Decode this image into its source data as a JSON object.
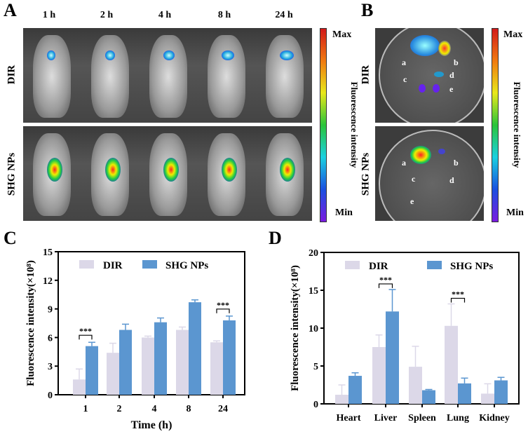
{
  "panel_labels": {
    "a": "A",
    "b": "B",
    "c": "C",
    "d": "D"
  },
  "panel_a": {
    "time_labels": [
      "1 h",
      "2 h",
      "4 h",
      "8 h",
      "24 h"
    ],
    "rows": [
      "DIR",
      "SHG  NPs"
    ],
    "colorbar": {
      "max": "Max",
      "min": "Min",
      "label": "Fluorescence  intensity"
    }
  },
  "panel_b": {
    "rows": [
      "DIR",
      "SHG  NPs"
    ],
    "organ_letters": [
      "a",
      "b",
      "c",
      "d",
      "e"
    ],
    "colorbar": {
      "max": "Max",
      "min": "Min",
      "label": "Fluorescence  intensity"
    }
  },
  "colors": {
    "dir": "#dcd8e8",
    "shg": "#5b96d0"
  },
  "chart_data": [
    {
      "type": "bar",
      "title": "",
      "xlabel": "Time (h)",
      "ylabel": "Fluorescence  intensity(×10⁸)",
      "ylim": [
        0,
        15
      ],
      "yticks": [
        0,
        3,
        6,
        9,
        12,
        15
      ],
      "categories": [
        "1",
        "2",
        "4",
        "8",
        "24"
      ],
      "series": [
        {
          "name": "DIR",
          "values": [
            1.6,
            4.4,
            6.0,
            6.8,
            5.5
          ],
          "errors": [
            1.1,
            1.0,
            0.15,
            0.3,
            0.15
          ]
        },
        {
          "name": "SHG NPs",
          "values": [
            5.1,
            6.8,
            7.6,
            9.7,
            7.8
          ],
          "errors": [
            0.4,
            0.6,
            0.45,
            0.25,
            0.45
          ]
        }
      ],
      "significance": [
        {
          "category": "1",
          "label": "***"
        },
        {
          "category": "24",
          "label": "***"
        }
      ],
      "legend": "top"
    },
    {
      "type": "bar",
      "title": "",
      "xlabel": "",
      "ylabel": "Fluorescence  intensity(×10⁸)",
      "ylim": [
        0,
        20
      ],
      "yticks": [
        0,
        5,
        10,
        15,
        20
      ],
      "categories": [
        "Heart",
        "Liver",
        "Spleen",
        "Lung",
        "Kidney"
      ],
      "series": [
        {
          "name": "DIR",
          "values": [
            1.2,
            7.5,
            4.9,
            10.3,
            1.35
          ],
          "errors": [
            1.3,
            1.6,
            2.7,
            2.9,
            1.3
          ]
        },
        {
          "name": "SHG NPs",
          "values": [
            3.7,
            12.2,
            1.8,
            2.7,
            3.1
          ],
          "errors": [
            0.4,
            2.9,
            0.1,
            0.7,
            0.4
          ]
        }
      ],
      "significance": [
        {
          "category": "Liver",
          "label": "***"
        },
        {
          "category": "Lung",
          "label": "***"
        }
      ],
      "legend": "top"
    }
  ]
}
